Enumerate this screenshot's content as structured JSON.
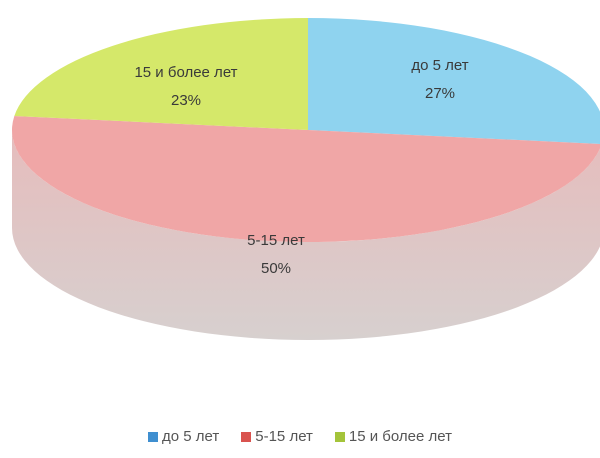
{
  "chart_data": {
    "type": "pie",
    "title": "",
    "categories": [
      "до 5 лет",
      "5-15 лет",
      "15 и более  лет"
    ],
    "values": [
      27,
      50,
      23
    ],
    "data_labels": [
      "27%",
      "50%",
      "23%"
    ],
    "colors": [
      "#8fd3ef",
      "#f0a6a6",
      "#d5e86a"
    ],
    "legend_position": "bottom",
    "style": "3d-tilted"
  },
  "legend": [
    {
      "label": "до 5 лет",
      "color": "#3f8fd0"
    },
    {
      "label": "5-15 лет",
      "color": "#d9534f"
    },
    {
      "label": "15 и более  лет",
      "color": "#a4c43a"
    }
  ]
}
